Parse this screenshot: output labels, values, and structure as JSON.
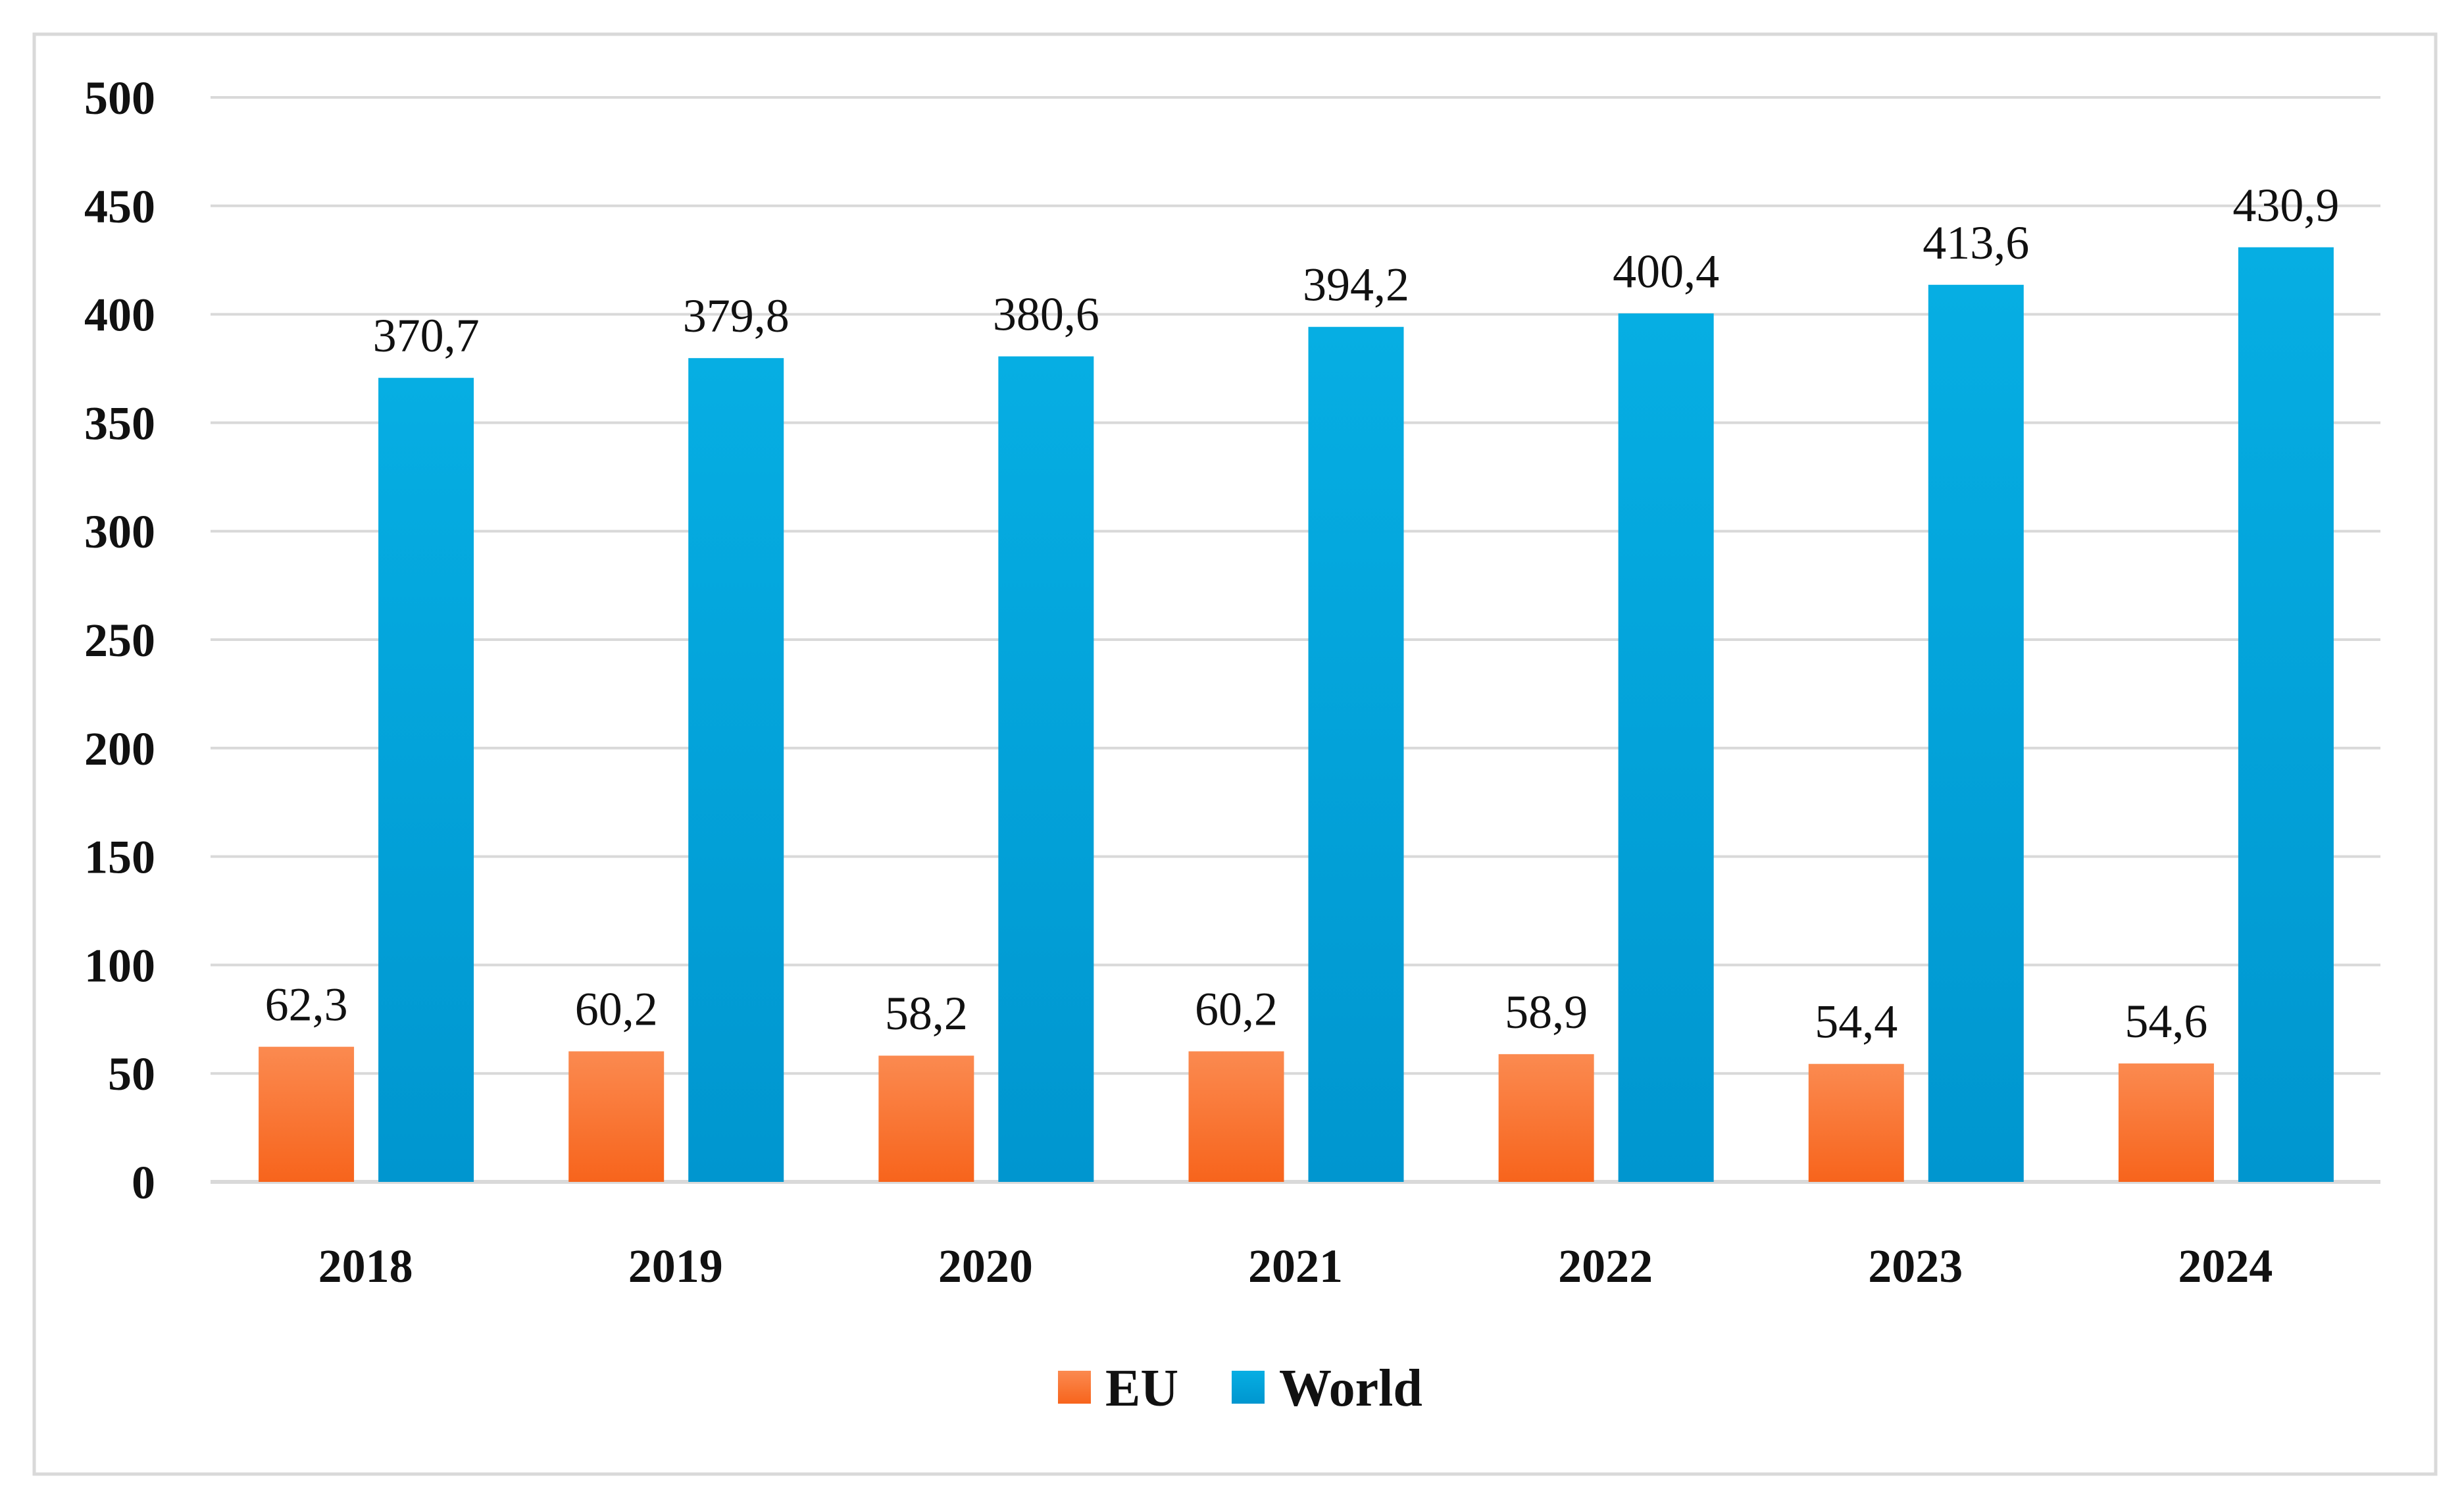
{
  "chart_data": {
    "type": "bar",
    "title": "",
    "xlabel": "",
    "ylabel": "",
    "categories": [
      "2018",
      "2019",
      "2020",
      "2021",
      "2022",
      "2023",
      "2024"
    ],
    "series": [
      {
        "name": "EU",
        "color": "#f7641c",
        "color_top": "#fb8a50",
        "values": [
          62.3,
          60.2,
          58.2,
          60.2,
          58.9,
          54.4,
          54.6
        ],
        "labels": [
          "62,3",
          "60,2",
          "58,2",
          "60,2",
          "58,9",
          "54,4",
          "54,6"
        ]
      },
      {
        "name": "World",
        "color": "#0096cf",
        "color_top": "#06aee3",
        "values": [
          370.7,
          379.8,
          380.6,
          394.2,
          400.4,
          413.6,
          430.9
        ],
        "labels": [
          "370,7",
          "379,8",
          "380,6",
          "394,2",
          "400,4",
          "413,6",
          "430,9"
        ]
      }
    ],
    "ylim": [
      0,
      500
    ],
    "yticks": [
      0,
      50,
      100,
      150,
      200,
      250,
      300,
      350,
      400,
      450,
      500
    ],
    "grid": true,
    "legend": "bottom-center",
    "frame_color": "#d9d9d9",
    "grid_color": "#d9d9d9"
  }
}
